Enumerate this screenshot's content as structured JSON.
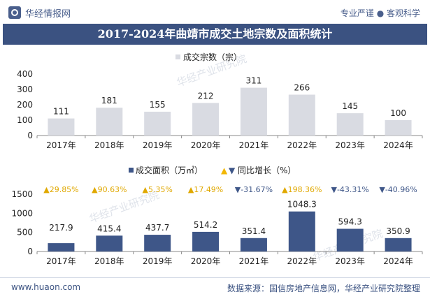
{
  "header": {
    "brand": "华经情报网",
    "slogan": "专业严谨 ● 客观科学"
  },
  "title": "2017-2024年曲靖市成交土地宗数及面积统计",
  "footer": {
    "site": "www.huaon.com",
    "source": "数据来源：国信房地产信息网，华经产业研究院整理"
  },
  "watermark": "华经产业研究院",
  "colors": {
    "count_bar": "#d9dbe2",
    "area_bar": "#3e5688",
    "up": "#f2b705",
    "down": "#3e5688",
    "title_bg": "#3b5281"
  },
  "chart_data": [
    {
      "type": "bar",
      "categories": [
        "2017年",
        "2018年",
        "2019年",
        "2020年",
        "2021年",
        "2022年",
        "2023年",
        "2024年"
      ],
      "series": [
        {
          "name": "成交宗数（宗）",
          "values": [
            111,
            181,
            155,
            212,
            311,
            266,
            145,
            100
          ]
        }
      ],
      "ylim": [
        0,
        400
      ],
      "yticks": [
        0,
        100,
        200,
        300,
        400
      ],
      "legend": "top-center",
      "grid": false
    },
    {
      "type": "bar",
      "categories": [
        "2017年",
        "2018年",
        "2019年",
        "2020年",
        "2021年",
        "2022年",
        "2023年",
        "2024年"
      ],
      "series": [
        {
          "name": "成交面积（万㎡）",
          "values": [
            217.9,
            415.4,
            437.7,
            514.2,
            351.4,
            1048.3,
            594.3,
            350.9
          ]
        }
      ],
      "yoy": {
        "name": "同比增长（%）",
        "labels": [
          "29.85%",
          "90.63%",
          "5.35%",
          "17.49%",
          "-31.67%",
          "198.36%",
          "-43.31%",
          "-40.96%"
        ],
        "direction": [
          "up",
          "up",
          "up",
          "up",
          "down",
          "up",
          "down",
          "down"
        ]
      },
      "ylim": [
        0,
        1500
      ],
      "yticks": [
        0,
        500,
        1000,
        1500
      ],
      "legend": "top-center",
      "grid": false
    }
  ]
}
